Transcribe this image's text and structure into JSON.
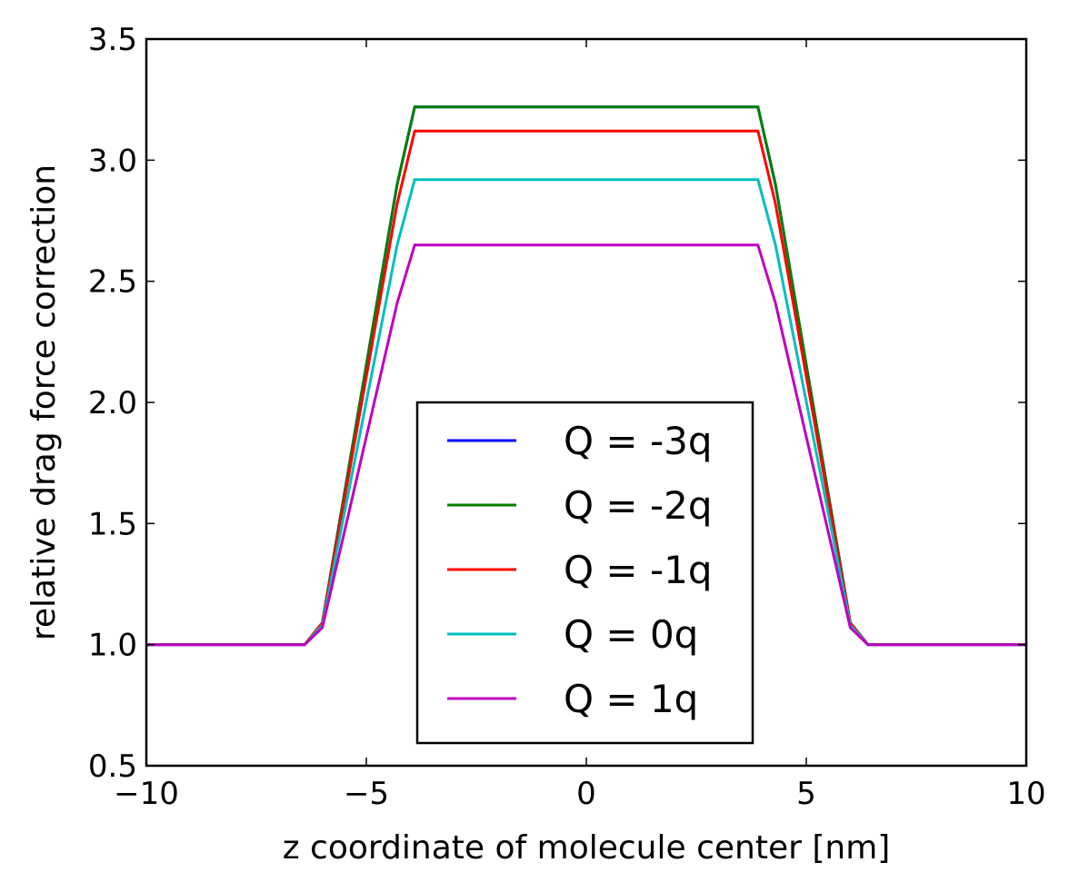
{
  "chart_data": {
    "type": "line",
    "xlabel": "z coordinate of molecule center [nm]",
    "ylabel": "relative drag force correction",
    "xlim": [
      -10,
      10
    ],
    "ylim": [
      0.5,
      3.5
    ],
    "xticks": [
      -10,
      -5,
      0,
      5,
      10
    ],
    "xtick_labels": [
      "−10",
      "−5",
      "0",
      "5",
      "10"
    ],
    "yticks": [
      0.5,
      1.0,
      1.5,
      2.0,
      2.5,
      3.0,
      3.5
    ],
    "ytick_labels": [
      "0.5",
      "1.0",
      "1.5",
      "2.0",
      "2.5",
      "3.0",
      "3.5"
    ],
    "grid": false,
    "legend_position": "lower center",
    "series": [
      {
        "name": "Q = -3q",
        "color": "#0000ff",
        "x": [
          -10,
          -6.4,
          -6.0,
          -4.3,
          -3.9,
          3.9,
          4.3,
          6.0,
          6.4,
          10
        ],
        "y": [
          1.0,
          1.0,
          1.09,
          2.9,
          3.22,
          3.22,
          2.9,
          1.09,
          1.0,
          1.0
        ]
      },
      {
        "name": "Q = -2q",
        "color": "#008000",
        "x": [
          -10,
          -6.4,
          -6.0,
          -4.3,
          -3.9,
          3.9,
          4.3,
          6.0,
          6.4,
          10
        ],
        "y": [
          1.0,
          1.0,
          1.09,
          2.9,
          3.22,
          3.22,
          2.9,
          1.09,
          1.0,
          1.0
        ]
      },
      {
        "name": "Q = -1q",
        "color": "#ff0000",
        "x": [
          -10,
          -6.4,
          -6.0,
          -4.3,
          -3.9,
          3.9,
          4.3,
          6.0,
          6.4,
          10
        ],
        "y": [
          1.0,
          1.0,
          1.09,
          2.82,
          3.12,
          3.12,
          2.82,
          1.09,
          1.0,
          1.0
        ]
      },
      {
        "name": "Q = 0q",
        "color": "#00bfbf",
        "x": [
          -10,
          -6.4,
          -6.0,
          -4.3,
          -3.9,
          3.9,
          4.3,
          6.0,
          6.4,
          10
        ],
        "y": [
          1.0,
          1.0,
          1.08,
          2.65,
          2.92,
          2.92,
          2.65,
          1.08,
          1.0,
          1.0
        ]
      },
      {
        "name": "Q = 1q",
        "color": "#bf00bf",
        "x": [
          -10,
          -6.4,
          -6.0,
          -4.3,
          -3.9,
          3.9,
          4.3,
          6.0,
          6.4,
          10
        ],
        "y": [
          1.0,
          1.0,
          1.07,
          2.41,
          2.65,
          2.65,
          2.41,
          1.07,
          1.0,
          1.0
        ]
      }
    ]
  }
}
